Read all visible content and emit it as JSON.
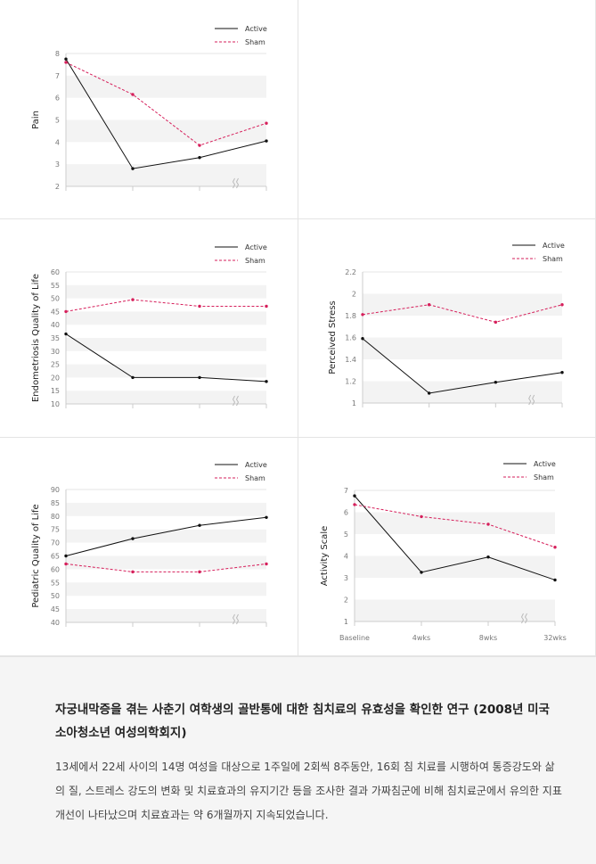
{
  "legend": {
    "active": "Active",
    "sham": "Sham"
  },
  "colors": {
    "active": "#111111",
    "sham": "#d61f5b",
    "band": "#f3f3f3",
    "axis": "#cccccc",
    "tick_text": "#777777",
    "label_text": "#222222",
    "break": "#bbbbbb"
  },
  "chart_data": [
    {
      "type": "line",
      "ylabel": "Pain",
      "ylim": [
        2,
        8
      ],
      "yticks": [
        2,
        3,
        4,
        5,
        6,
        7,
        8
      ],
      "x": [
        "",
        "",
        "",
        ""
      ],
      "x_labels_visible": false,
      "axis_break": true,
      "series": [
        {
          "name": "Active",
          "values": [
            7.75,
            2.8,
            3.3,
            4.05
          ]
        },
        {
          "name": "Sham",
          "values": [
            7.6,
            6.15,
            3.85,
            4.85
          ]
        }
      ]
    },
    {
      "type": "line",
      "ylabel": "Endometriosis Quality of Life",
      "ylim": [
        10,
        60
      ],
      "yticks": [
        10,
        15,
        20,
        25,
        30,
        35,
        40,
        45,
        50,
        55,
        60
      ],
      "x": [
        "",
        "",
        "",
        ""
      ],
      "x_labels_visible": false,
      "axis_break": true,
      "series": [
        {
          "name": "Active",
          "values": [
            36.5,
            20,
            20,
            18.5
          ]
        },
        {
          "name": "Sham",
          "values": [
            45,
            49.5,
            47,
            47
          ]
        }
      ]
    },
    {
      "type": "line",
      "ylabel": "Perceived Stress",
      "ylim": [
        1,
        2.2
      ],
      "yticks": [
        1,
        1.2,
        1.4,
        1.6,
        1.8,
        2,
        2.2
      ],
      "x": [
        "",
        "",
        "",
        ""
      ],
      "x_labels_visible": false,
      "axis_break": true,
      "series": [
        {
          "name": "Active",
          "values": [
            1.59,
            1.09,
            1.19,
            1.28
          ]
        },
        {
          "name": "Sham",
          "values": [
            1.81,
            1.9,
            1.74,
            1.9
          ]
        }
      ]
    },
    {
      "type": "line",
      "ylabel": "Pediatric Quality of Life",
      "ylim": [
        40,
        90
      ],
      "yticks": [
        40,
        45,
        50,
        55,
        60,
        65,
        70,
        75,
        80,
        85,
        90
      ],
      "x": [
        "",
        "",
        "",
        ""
      ],
      "x_labels_visible": false,
      "axis_break": true,
      "series": [
        {
          "name": "Active",
          "values": [
            65,
            71.5,
            76.5,
            79.5
          ]
        },
        {
          "name": "Sham",
          "values": [
            62,
            59,
            59,
            62
          ]
        }
      ]
    },
    {
      "type": "line",
      "ylabel": "Activity Scale",
      "ylim": [
        1,
        7
      ],
      "yticks": [
        1,
        2,
        3,
        4,
        5,
        6,
        7
      ],
      "x": [
        "Baseline",
        "4wks",
        "8wks",
        "32wks"
      ],
      "x_labels_visible": true,
      "axis_break": true,
      "series": [
        {
          "name": "Active",
          "values": [
            6.75,
            3.25,
            3.95,
            2.9
          ]
        },
        {
          "name": "Sham",
          "values": [
            6.35,
            5.8,
            5.45,
            4.4
          ]
        }
      ]
    }
  ],
  "caption": {
    "title": "자궁내막증을 겪는 사춘기 여학생의 골반통에 대한 침치료의 유효성을 확인한 연구 (2008년 미국 소아청소년 여성의학회지)",
    "body": "13세에서 22세 사이의 14명 여성을 대상으로 1주일에 2회씩 8주동안, 16회 침 치료를 시행하여 통증강도와 삶의 질, 스트레스 강도의 변화 및 치료효과의 유지기간 등을 조사한 결과 가짜침군에 비해 침치료군에서 유의한 지표개선이 나타났으며 치료효과는 약 6개월까지 지속되었습니다."
  }
}
